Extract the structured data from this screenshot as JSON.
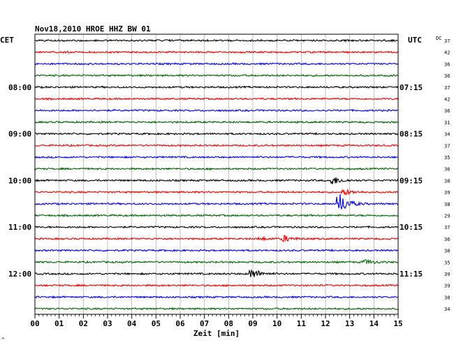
{
  "chart_data": {
    "type": "line",
    "title": "Nov18,2010   HROE HHZ BW 01",
    "xlabel": "Zeit [min]",
    "x_ticks": [
      "00",
      "01",
      "02",
      "03",
      "04",
      "05",
      "06",
      "07",
      "08",
      "09",
      "10",
      "11",
      "12",
      "13",
      "14",
      "15"
    ],
    "xlim": [
      0,
      15
    ],
    "left_axis_label": "CET",
    "right_axis_label": "UTC",
    "dc_label": "DC",
    "left_time_labels": [
      {
        "row": 4,
        "text": "08:00"
      },
      {
        "row": 8,
        "text": "09:00"
      },
      {
        "row": 12,
        "text": "10:00"
      },
      {
        "row": 16,
        "text": "11:00"
      },
      {
        "row": 20,
        "text": "12:00"
      }
    ],
    "right_time_labels": [
      {
        "row": 4,
        "text": "07:15"
      },
      {
        "row": 8,
        "text": "08:15"
      },
      {
        "row": 12,
        "text": "09:15"
      },
      {
        "row": 16,
        "text": "10:15"
      },
      {
        "row": 20,
        "text": "11:15"
      }
    ],
    "dc_values": [
      "37",
      "42",
      "36",
      "36",
      "37",
      "42",
      "36",
      "31",
      "34",
      "37",
      "35",
      "36",
      "38",
      "39",
      "38",
      "29",
      "37",
      "36",
      "38",
      "35",
      "39",
      "39",
      "38",
      "34"
    ],
    "trace_colors": [
      "#000000",
      "#ff0000",
      "#0000ff",
      "#006400"
    ],
    "grid": true,
    "events": [
      {
        "row": 12,
        "minute": 12.3,
        "amplitude": 6
      },
      {
        "row": 13,
        "minute": 12.8,
        "amplitude": 4
      },
      {
        "row": 14,
        "minute": 12.6,
        "amplitude": 14
      },
      {
        "row": 17,
        "minute": 9.3,
        "amplitude": 2
      },
      {
        "row": 17,
        "minute": 10.3,
        "amplitude": 4
      },
      {
        "row": 19,
        "minute": 13.7,
        "amplitude": 3
      },
      {
        "row": 20,
        "minute": 9.0,
        "amplitude": 7
      }
    ],
    "footer_mark": "^"
  }
}
